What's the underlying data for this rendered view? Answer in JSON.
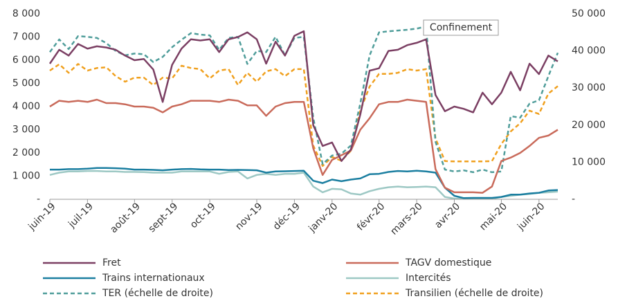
{
  "chart_data": {
    "type": "line",
    "annotation": "Confinement",
    "categories": [
      "juin-19",
      null,
      null,
      null,
      "juil-19",
      null,
      null,
      null,
      null,
      "août-19",
      null,
      null,
      null,
      "sept-19",
      null,
      null,
      null,
      "oct-19",
      null,
      null,
      null,
      null,
      "nov-19",
      null,
      null,
      null,
      "déc-19",
      null,
      null,
      null,
      "janv-20",
      null,
      null,
      null,
      null,
      "févr-20",
      null,
      null,
      null,
      "mars-20",
      null,
      null,
      null,
      "avr-20",
      null,
      null,
      null,
      null,
      "mai-20",
      null,
      null,
      null,
      "juin-20",
      null,
      null
    ],
    "ylim": [
      0,
      8000
    ],
    "yticks": [
      {
        "value": 0,
        "label": "-"
      },
      {
        "value": 1000,
        "label": "1 000"
      },
      {
        "value": 2000,
        "label": "2 000"
      },
      {
        "value": 3000,
        "label": "3 000"
      },
      {
        "value": 4000,
        "label": "4 000"
      },
      {
        "value": 5000,
        "label": "5 000"
      },
      {
        "value": 6000,
        "label": "6 000"
      },
      {
        "value": 7000,
        "label": "7 000"
      },
      {
        "value": 8000,
        "label": "8 000"
      }
    ],
    "y2lim": [
      0,
      50000
    ],
    "y2ticks": [
      {
        "value": 0,
        "label": "-"
      },
      {
        "value": 10000,
        "label": "10 000"
      },
      {
        "value": 20000,
        "label": "20 000"
      },
      {
        "value": 30000,
        "label": "30 000"
      },
      {
        "value": 40000,
        "label": "40 000"
      },
      {
        "value": 50000,
        "label": "50 000"
      }
    ],
    "grid": false,
    "legend": "bottom",
    "series": [
      {
        "name": "Fret",
        "color": "#7b3f63",
        "style": "solid",
        "values": [
          5850,
          6450,
          6200,
          6700,
          6500,
          6600,
          6550,
          6450,
          6200,
          6000,
          6050,
          5600,
          4200,
          5800,
          6500,
          6900,
          6850,
          6900,
          6350,
          6900,
          7000,
          7200,
          6900,
          5850,
          6800,
          6200,
          7050,
          7250,
          3200,
          2300,
          2450,
          1650,
          2150,
          3650,
          5550,
          5650,
          6400,
          6450,
          6650,
          6750,
          6900,
          4500,
          3800,
          4000,
          3900,
          3750,
          4600,
          4100,
          4600,
          5500,
          4700,
          5850,
          5400,
          6200,
          5950
        ]
      },
      {
        "name": "TAGV domestique",
        "color": "#c96a5a",
        "style": "solid",
        "values": [
          4000,
          4250,
          4200,
          4250,
          4200,
          4300,
          4150,
          4150,
          4100,
          4000,
          4000,
          3950,
          3750,
          4000,
          4100,
          4250,
          4250,
          4250,
          4200,
          4300,
          4250,
          4050,
          4050,
          3600,
          4000,
          4150,
          4200,
          4200,
          2200,
          1050,
          1700,
          1900,
          2100,
          3000,
          3500,
          4100,
          4200,
          4200,
          4300,
          4250,
          4200,
          1300,
          500,
          300,
          300,
          300,
          280,
          550,
          1650,
          1800,
          2000,
          2300,
          2650,
          2750,
          3000
        ]
      },
      {
        "name": "Trains internationaux",
        "color": "#1a7ea0",
        "style": "solid",
        "values": [
          1280,
          1280,
          1300,
          1300,
          1320,
          1350,
          1350,
          1340,
          1320,
          1280,
          1280,
          1270,
          1250,
          1280,
          1300,
          1310,
          1290,
          1280,
          1280,
          1260,
          1270,
          1260,
          1250,
          1150,
          1200,
          1210,
          1220,
          1230,
          800,
          700,
          850,
          780,
          850,
          900,
          1080,
          1100,
          1180,
          1220,
          1200,
          1230,
          1200,
          1150,
          500,
          150,
          50,
          60,
          60,
          60,
          100,
          200,
          200,
          250,
          280,
          380,
          400
        ]
      },
      {
        "name": "Intercités",
        "color": "#9dc8c4",
        "style": "solid",
        "values": [
          1050,
          1150,
          1200,
          1200,
          1220,
          1220,
          1200,
          1200,
          1180,
          1180,
          1170,
          1150,
          1150,
          1150,
          1200,
          1200,
          1200,
          1200,
          1100,
          1180,
          1200,
          900,
          1050,
          1100,
          1050,
          1100,
          1100,
          1150,
          550,
          300,
          450,
          430,
          250,
          200,
          350,
          450,
          520,
          550,
          520,
          530,
          550,
          520,
          100,
          30,
          20,
          20,
          20,
          20,
          100,
          150,
          200,
          230,
          280,
          300,
          330
        ]
      },
      {
        "name": "TER (échelle de droite)",
        "color": "#4f9d9a",
        "style": "dashed",
        "axis": "y2",
        "values": [
          39700,
          43100,
          40500,
          44000,
          43800,
          43500,
          42100,
          40000,
          38800,
          39300,
          39100,
          37000,
          38400,
          41000,
          43000,
          44800,
          44400,
          44200,
          40300,
          43500,
          43800,
          36500,
          40000,
          39700,
          43800,
          38800,
          43500,
          43800,
          22000,
          9500,
          11800,
          12300,
          14500,
          25800,
          38800,
          45000,
          45300,
          45500,
          45700,
          46000,
          46600,
          15500,
          8000,
          7500,
          7800,
          7300,
          8000,
          7300,
          7500,
          22400,
          22000,
          25800,
          26700,
          33200,
          39500
        ]
      },
      {
        "name": "Transilien (échelle de droite)",
        "color": "#f0a01e",
        "style": "dashed",
        "axis": "y2",
        "values": [
          34700,
          36400,
          34100,
          36500,
          34700,
          35400,
          35600,
          33200,
          31700,
          32800,
          32800,
          30800,
          32800,
          32600,
          36000,
          35400,
          35100,
          32600,
          34700,
          35100,
          30800,
          34100,
          31700,
          34500,
          35100,
          33200,
          35100,
          35100,
          14500,
          9000,
          11400,
          10400,
          13100,
          23900,
          30400,
          33800,
          33800,
          34100,
          35100,
          34700,
          35100,
          16400,
          10300,
          10200,
          10200,
          10200,
          10200,
          10300,
          14900,
          18300,
          20500,
          23900,
          23000,
          28500,
          30500
        ]
      }
    ]
  }
}
